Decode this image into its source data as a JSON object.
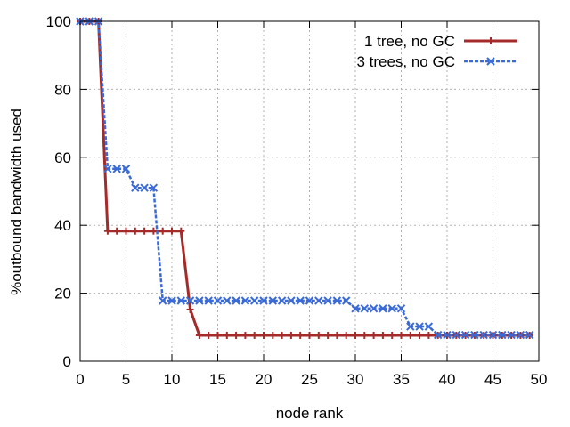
{
  "chart_data": {
    "type": "line",
    "title": "",
    "xlabel": "node rank",
    "ylabel": "%outbound bandwidth used",
    "xlim": [
      0,
      50
    ],
    "ylim": [
      0,
      100
    ],
    "xticks": [
      0,
      5,
      10,
      15,
      20,
      25,
      30,
      35,
      40,
      45,
      50
    ],
    "yticks": [
      0,
      20,
      40,
      60,
      80,
      100
    ],
    "grid": true,
    "legend_position": "top-right",
    "series": [
      {
        "name": "1 tree, no GC",
        "color": "#a52a2a",
        "line_style": "solid",
        "marker": "plus",
        "x": [
          0,
          1,
          2,
          3,
          4,
          5,
          6,
          7,
          8,
          9,
          10,
          11,
          12,
          13,
          14,
          15,
          16,
          17,
          18,
          19,
          20,
          21,
          22,
          23,
          24,
          25,
          26,
          27,
          28,
          29,
          30,
          31,
          32,
          33,
          34,
          35,
          36,
          37,
          38,
          39,
          40,
          41,
          42,
          43,
          44,
          45,
          46,
          47,
          48,
          49
        ],
        "y": [
          100,
          100,
          100,
          38.3,
          38.3,
          38.3,
          38.3,
          38.3,
          38.3,
          38.3,
          38.3,
          38.3,
          15.2,
          7.6,
          7.6,
          7.6,
          7.6,
          7.6,
          7.6,
          7.6,
          7.6,
          7.6,
          7.6,
          7.6,
          7.6,
          7.6,
          7.6,
          7.6,
          7.6,
          7.6,
          7.6,
          7.6,
          7.6,
          7.6,
          7.6,
          7.6,
          7.6,
          7.6,
          7.6,
          7.6,
          7.6,
          7.6,
          7.6,
          7.6,
          7.6,
          7.6,
          7.6,
          7.6,
          7.6,
          7.6
        ]
      },
      {
        "name": "3 trees, no GC",
        "color": "#3a6ad6",
        "line_style": "dashed",
        "marker": "cross",
        "x": [
          0,
          1,
          2,
          3,
          4,
          5,
          6,
          7,
          8,
          9,
          10,
          11,
          12,
          13,
          14,
          15,
          16,
          17,
          18,
          19,
          20,
          21,
          22,
          23,
          24,
          25,
          26,
          27,
          28,
          29,
          30,
          31,
          32,
          33,
          34,
          35,
          36,
          37,
          38,
          39,
          40,
          41,
          42,
          43,
          44,
          45,
          46,
          47,
          48,
          49
        ],
        "y": [
          100,
          100,
          100,
          56.6,
          56.6,
          56.6,
          51.0,
          51.0,
          51.0,
          17.8,
          17.8,
          17.8,
          17.8,
          17.8,
          17.8,
          17.8,
          17.8,
          17.8,
          17.8,
          17.8,
          17.8,
          17.8,
          17.8,
          17.8,
          17.8,
          17.8,
          17.8,
          17.8,
          17.8,
          17.8,
          15.5,
          15.5,
          15.5,
          15.5,
          15.5,
          15.5,
          10.2,
          10.2,
          10.2,
          7.7,
          7.7,
          7.7,
          7.7,
          7.7,
          7.7,
          7.7,
          7.7,
          7.7,
          7.7,
          7.7
        ]
      }
    ]
  }
}
